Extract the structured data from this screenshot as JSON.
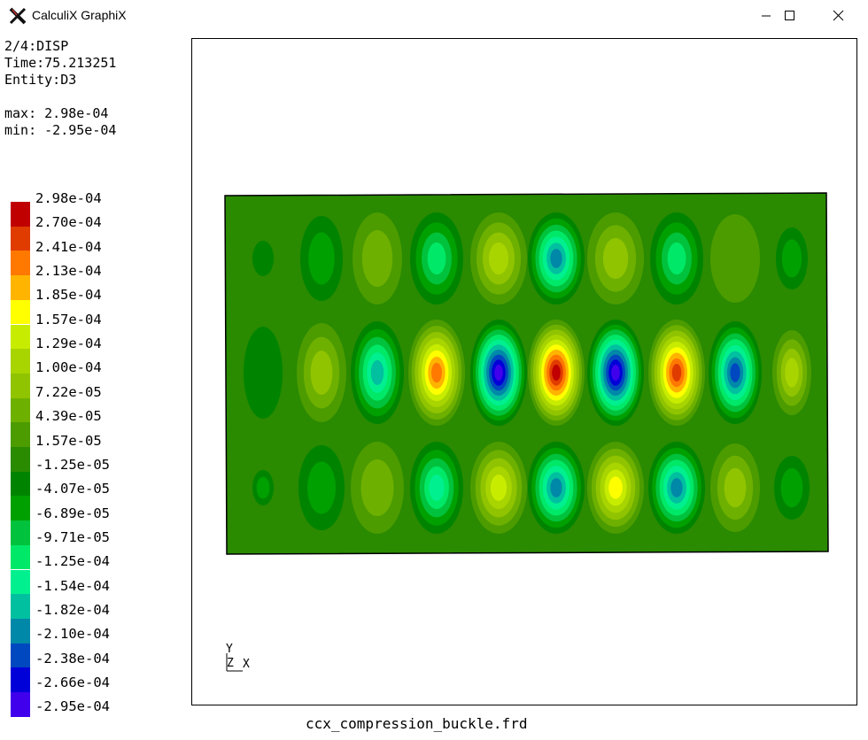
{
  "window": {
    "title": "CalculiX GraphiX",
    "icon": "calculix-x-icon",
    "controls": [
      "minimize-icon",
      "maximize-icon",
      "close-icon"
    ]
  },
  "info": {
    "dataset": "2/4:DISP",
    "time": "Time:75.213251",
    "entity": "Entity:D3",
    "max": "max: 2.98e-04",
    "min": "min: -2.95e-04"
  },
  "legend": {
    "labels": [
      "2.98e-04",
      "2.70e-04",
      "2.41e-04",
      "2.13e-04",
      "1.85e-04",
      "1.57e-04",
      "1.29e-04",
      "1.00e-04",
      "7.22e-05",
      "4.39e-05",
      "1.57e-05",
      "-1.25e-05",
      "-4.07e-05",
      "-6.89e-05",
      "-9.71e-05",
      "-1.25e-04",
      "-1.54e-04",
      "-1.82e-04",
      "-2.10e-04",
      "-2.38e-04",
      "-2.66e-04",
      "-2.95e-04"
    ],
    "colors": [
      "#c00000",
      "#e03c00",
      "#ff7800",
      "#ffb400",
      "#ffff00",
      "#c8ec00",
      "#a8d400",
      "#90c400",
      "#6eb000",
      "#4c9c00",
      "#2a8a00",
      "#008400",
      "#00a000",
      "#00c23c",
      "#00e868",
      "#00f090",
      "#00c0a0",
      "#0088a8",
      "#0048c0",
      "#0000d8",
      "#4000ec",
      "#8c00ff"
    ]
  },
  "triad": {
    "y": "Y",
    "z": "Z",
    "x": "X"
  },
  "footer": {
    "filename": "ccx_compression_buckle.frd"
  }
}
